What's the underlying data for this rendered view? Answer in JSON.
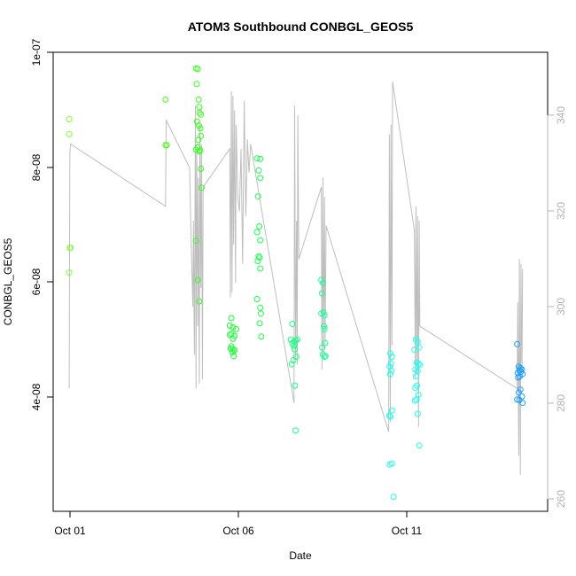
{
  "chart_data": {
    "type": "scatter",
    "title": "ATOM3 Southbound CONBGL_GEOS5",
    "xlabel": "Date",
    "ylabel": "CONBGL_GEOS5",
    "x_ticks": [
      "Oct 01",
      "Oct 06",
      "Oct 11"
    ],
    "x_tick_days": [
      1,
      6,
      11
    ],
    "xlim": [
      0.5,
      15.9
    ],
    "y_ticks": [
      "4e-08",
      "6e-08",
      "8e-08",
      "1e-07"
    ],
    "y_tick_values": [
      4e-08,
      6e-08,
      8e-08,
      1e-07
    ],
    "ylim": [
      2.04e-08,
      1e-07
    ],
    "y2_ticks": [
      "260",
      "280",
      "300",
      "320",
      "340"
    ],
    "y2_tick_values": [
      260,
      280,
      300,
      320,
      340
    ],
    "y2lim": [
      258.5,
      354
    ],
    "grid": false,
    "colors": {
      "secondary_line": "#bebebe",
      "secondary_axis": "#b3b3b3",
      "frame": "#000000"
    },
    "series": [
      {
        "kind": "points",
        "points": [
          {
            "x": 1.0,
            "y": 8.84e-08,
            "color": "#7CFF33"
          },
          {
            "x": 1.0,
            "y": 8.58e-08,
            "color": "#7CFF33"
          },
          {
            "x": 1.02,
            "y": 6.61e-08,
            "color": "#7CFF33"
          },
          {
            "x": 1.04,
            "y": 6.61e-08,
            "color": "#7CFF33"
          },
          {
            "x": 1.0,
            "y": 6.18e-08,
            "color": "#7CFF33"
          },
          {
            "x": 4.0,
            "y": 9.18e-08,
            "color": "#4CFF1A"
          },
          {
            "x": 4.0,
            "y": 8.39e-08,
            "color": "#4CFF1A"
          },
          {
            "x": 4.04,
            "y": 8.39e-08,
            "color": "#4CFF1A"
          },
          {
            "x": 4.95,
            "y": 9.72e-08,
            "color": "#33FF1A"
          },
          {
            "x": 5.0,
            "y": 9.71e-08,
            "color": "#33FF1A"
          },
          {
            "x": 4.97,
            "y": 9.45e-08,
            "color": "#33FF1A"
          },
          {
            "x": 5.03,
            "y": 9.18e-08,
            "color": "#33FF1A"
          },
          {
            "x": 5.05,
            "y": 9.05e-08,
            "color": "#33FF1A"
          },
          {
            "x": 5.06,
            "y": 8.95e-08,
            "color": "#33FF1A"
          },
          {
            "x": 5.1,
            "y": 8.92e-08,
            "color": "#33FF1A"
          },
          {
            "x": 4.98,
            "y": 8.8e-08,
            "color": "#33FF1A"
          },
          {
            "x": 5.04,
            "y": 8.73e-08,
            "color": "#33FF1A"
          },
          {
            "x": 5.08,
            "y": 8.68e-08,
            "color": "#33FF1A"
          },
          {
            "x": 5.1,
            "y": 8.55e-08,
            "color": "#33FF1A"
          },
          {
            "x": 5.02,
            "y": 8.48e-08,
            "color": "#33FF1A"
          },
          {
            "x": 5.0,
            "y": 8.35e-08,
            "color": "#33FF1A"
          },
          {
            "x": 4.95,
            "y": 8.31e-08,
            "color": "#33FF1A"
          },
          {
            "x": 5.05,
            "y": 8.28e-08,
            "color": "#33FF1A"
          },
          {
            "x": 5.08,
            "y": 8.3e-08,
            "color": "#33FF1A"
          },
          {
            "x": 5.1,
            "y": 7.98e-08,
            "color": "#33FF1A"
          },
          {
            "x": 5.12,
            "y": 7.65e-08,
            "color": "#33FF1A"
          },
          {
            "x": 4.95,
            "y": 6.73e-08,
            "color": "#33FF1A"
          },
          {
            "x": 5.0,
            "y": 6.05e-08,
            "color": "#33FF1A"
          },
          {
            "x": 5.05,
            "y": 5.68e-08,
            "color": "#33FF1A"
          },
          {
            "x": 6.05,
            "y": 5.39e-08,
            "color": "#1AFF33"
          },
          {
            "x": 6.0,
            "y": 5.26e-08,
            "color": "#1AFF33"
          },
          {
            "x": 6.1,
            "y": 5.23e-08,
            "color": "#1AFF33"
          },
          {
            "x": 6.2,
            "y": 5.2e-08,
            "color": "#1AFF33"
          },
          {
            "x": 6.05,
            "y": 5.12e-08,
            "color": "#1AFF33"
          },
          {
            "x": 6.15,
            "y": 5.08e-08,
            "color": "#1AFF33"
          },
          {
            "x": 6.1,
            "y": 5.03e-08,
            "color": "#1AFF33"
          },
          {
            "x": 6.0,
            "y": 5.1e-08,
            "color": "#1AFF33"
          },
          {
            "x": 6.05,
            "y": 4.9e-08,
            "color": "#1AFF33"
          },
          {
            "x": 6.1,
            "y": 4.85e-08,
            "color": "#1AFF33"
          },
          {
            "x": 6.15,
            "y": 4.83e-08,
            "color": "#1AFF33"
          },
          {
            "x": 6.08,
            "y": 4.8e-08,
            "color": "#1AFF33"
          },
          {
            "x": 6.12,
            "y": 4.73e-08,
            "color": "#1AFF33"
          },
          {
            "x": 6.03,
            "y": 4.86e-08,
            "color": "#1AFF33"
          },
          {
            "x": 6.85,
            "y": 8.16e-08,
            "color": "#1AFF4D"
          },
          {
            "x": 6.95,
            "y": 8.15e-08,
            "color": "#1AFF4D"
          },
          {
            "x": 6.9,
            "y": 7.95e-08,
            "color": "#1AFF4D"
          },
          {
            "x": 6.95,
            "y": 7.82e-08,
            "color": "#1AFF4D"
          },
          {
            "x": 6.88,
            "y": 7.5e-08,
            "color": "#1AFF4D"
          },
          {
            "x": 6.92,
            "y": 6.98e-08,
            "color": "#1AFF4D"
          },
          {
            "x": 6.85,
            "y": 6.88e-08,
            "color": "#1AFF4D"
          },
          {
            "x": 6.95,
            "y": 6.74e-08,
            "color": "#1AFF4D"
          },
          {
            "x": 6.9,
            "y": 6.46e-08,
            "color": "#1AFF4D"
          },
          {
            "x": 6.93,
            "y": 6.44e-08,
            "color": "#1AFF4D"
          },
          {
            "x": 6.87,
            "y": 6.38e-08,
            "color": "#1AFF4D"
          },
          {
            "x": 6.95,
            "y": 6.25e-08,
            "color": "#1AFF4D"
          },
          {
            "x": 6.85,
            "y": 5.72e-08,
            "color": "#1AFF4D"
          },
          {
            "x": 6.95,
            "y": 5.57e-08,
            "color": "#1AFF4D"
          },
          {
            "x": 6.97,
            "y": 5.47e-08,
            "color": "#1AFF4D"
          },
          {
            "x": 6.93,
            "y": 5.3e-08,
            "color": "#1AFF4D"
          },
          {
            "x": 6.98,
            "y": 5.07e-08,
            "color": "#1AFF4D"
          },
          {
            "x": 7.95,
            "y": 5.29e-08,
            "color": "#1AFF80"
          },
          {
            "x": 7.9,
            "y": 5.02e-08,
            "color": "#1AFF80"
          },
          {
            "x": 8.0,
            "y": 4.98e-08,
            "color": "#1AFF80"
          },
          {
            "x": 8.05,
            "y": 5e-08,
            "color": "#1AFF80"
          },
          {
            "x": 8.1,
            "y": 5.02e-08,
            "color": "#1AFF80"
          },
          {
            "x": 7.95,
            "y": 4.95e-08,
            "color": "#1AFF80"
          },
          {
            "x": 8.0,
            "y": 4.91e-08,
            "color": "#1AFF80"
          },
          {
            "x": 8.02,
            "y": 4.85e-08,
            "color": "#1AFF80"
          },
          {
            "x": 8.07,
            "y": 4.72e-08,
            "color": "#1AFF80"
          },
          {
            "x": 7.98,
            "y": 4.66e-08,
            "color": "#1AFF80"
          },
          {
            "x": 7.93,
            "y": 4.59e-08,
            "color": "#1AFF80"
          },
          {
            "x": 8.03,
            "y": 4.22e-08,
            "color": "#1AFF80"
          },
          {
            "x": 8.05,
            "y": 3.44e-08,
            "color": "#1AFF80"
          },
          {
            "x": 8.85,
            "y": 6.05e-08,
            "color": "#1AFF99"
          },
          {
            "x": 8.9,
            "y": 6e-08,
            "color": "#1AFF99"
          },
          {
            "x": 8.87,
            "y": 5.82e-08,
            "color": "#1AFF99"
          },
          {
            "x": 8.92,
            "y": 5.49e-08,
            "color": "#1AFF99"
          },
          {
            "x": 8.85,
            "y": 5.47e-08,
            "color": "#1AFF99"
          },
          {
            "x": 8.95,
            "y": 5.44e-08,
            "color": "#1AFF99"
          },
          {
            "x": 8.93,
            "y": 5.25e-08,
            "color": "#1AFF99"
          },
          {
            "x": 8.95,
            "y": 5.2e-08,
            "color": "#1AFF99"
          },
          {
            "x": 8.97,
            "y": 4.96e-08,
            "color": "#1AFF99"
          },
          {
            "x": 8.88,
            "y": 4.88e-08,
            "color": "#1AFF99"
          },
          {
            "x": 8.9,
            "y": 4.76e-08,
            "color": "#1AFF99"
          },
          {
            "x": 8.95,
            "y": 4.72e-08,
            "color": "#1AFF99"
          },
          {
            "x": 8.98,
            "y": 4.73e-08,
            "color": "#1AFF99"
          },
          {
            "x": 11.0,
            "y": 4.78e-08,
            "color": "#1AFFE6"
          },
          {
            "x": 11.05,
            "y": 4.72e-08,
            "color": "#1AFFE6"
          },
          {
            "x": 11.02,
            "y": 4.6e-08,
            "color": "#1AFFE6"
          },
          {
            "x": 10.98,
            "y": 4.55e-08,
            "color": "#1AFFE6"
          },
          {
            "x": 11.03,
            "y": 4.48e-08,
            "color": "#1AFFE6"
          },
          {
            "x": 11.0,
            "y": 4.42e-08,
            "color": "#1AFFE6"
          },
          {
            "x": 11.05,
            "y": 3.79e-08,
            "color": "#1AFFE6"
          },
          {
            "x": 10.97,
            "y": 3.7e-08,
            "color": "#1AFFE6"
          },
          {
            "x": 11.0,
            "y": 3.68e-08,
            "color": "#1AFFE6"
          },
          {
            "x": 10.98,
            "y": 2.85e-08,
            "color": "#1AFFE6"
          },
          {
            "x": 11.05,
            "y": 2.87e-08,
            "color": "#1AFFE6"
          },
          {
            "x": 11.1,
            "y": 2.29e-08,
            "color": "#1AFFE6"
          },
          {
            "x": 11.8,
            "y": 5.02e-08,
            "color": "#1AFFF2"
          },
          {
            "x": 11.85,
            "y": 4.98e-08,
            "color": "#1AFFF2"
          },
          {
            "x": 11.9,
            "y": 4.88e-08,
            "color": "#1AFFF2"
          },
          {
            "x": 11.75,
            "y": 4.84e-08,
            "color": "#1AFFF2"
          },
          {
            "x": 11.82,
            "y": 4.62e-08,
            "color": "#1AFFF2"
          },
          {
            "x": 11.88,
            "y": 4.6e-08,
            "color": "#1AFFF2"
          },
          {
            "x": 11.92,
            "y": 4.58e-08,
            "color": "#1AFFF2"
          },
          {
            "x": 11.78,
            "y": 4.5e-08,
            "color": "#1AFFF2"
          },
          {
            "x": 11.85,
            "y": 4.47e-08,
            "color": "#1AFFF2"
          },
          {
            "x": 11.8,
            "y": 4.38e-08,
            "color": "#1AFFF2"
          },
          {
            "x": 11.83,
            "y": 4.22e-08,
            "color": "#1AFFF2"
          },
          {
            "x": 11.78,
            "y": 4.18e-08,
            "color": "#1AFFF2"
          },
          {
            "x": 11.88,
            "y": 4.06e-08,
            "color": "#1AFFF2"
          },
          {
            "x": 11.77,
            "y": 3.96e-08,
            "color": "#1AFFF2"
          },
          {
            "x": 11.82,
            "y": 3.98e-08,
            "color": "#1AFFF2"
          },
          {
            "x": 11.85,
            "y": 3.73e-08,
            "color": "#1AFFF2"
          },
          {
            "x": 11.9,
            "y": 3.18e-08,
            "color": "#1AFFF2"
          },
          {
            "x": 14.95,
            "y": 4.94e-08,
            "color": "#1A9FFF"
          },
          {
            "x": 15.0,
            "y": 4.55e-08,
            "color": "#1A9FFF"
          },
          {
            "x": 15.05,
            "y": 4.52e-08,
            "color": "#1A9FFF"
          },
          {
            "x": 15.1,
            "y": 4.5e-08,
            "color": "#1A9FFF"
          },
          {
            "x": 15.02,
            "y": 4.48e-08,
            "color": "#1A9FFF"
          },
          {
            "x": 15.07,
            "y": 4.46e-08,
            "color": "#1A9FFF"
          },
          {
            "x": 14.97,
            "y": 4.44e-08,
            "color": "#1A9FFF"
          },
          {
            "x": 15.12,
            "y": 4.42e-08,
            "color": "#1A9FFF"
          },
          {
            "x": 15.03,
            "y": 4.38e-08,
            "color": "#1A9FFF"
          },
          {
            "x": 14.98,
            "y": 4.36e-08,
            "color": "#1A9FFF"
          },
          {
            "x": 15.05,
            "y": 4.15e-08,
            "color": "#1A9FFF"
          },
          {
            "x": 15.0,
            "y": 4.1e-08,
            "color": "#1A9FFF"
          },
          {
            "x": 15.1,
            "y": 4.03e-08,
            "color": "#1A9FFF"
          },
          {
            "x": 14.95,
            "y": 3.98e-08,
            "color": "#1A9FFF"
          },
          {
            "x": 15.02,
            "y": 3.97e-08,
            "color": "#1A9FFF"
          },
          {
            "x": 15.12,
            "y": 3.92e-08,
            "color": "#1A9FFF"
          }
        ]
      },
      {
        "kind": "line",
        "axis": "right",
        "color": "#bebebe",
        "points": [
          [
            1.0,
            283
          ],
          [
            1.02,
            332
          ],
          [
            1.04,
            334
          ],
          [
            4.0,
            321
          ],
          [
            4.02,
            339
          ],
          [
            4.75,
            329
          ],
          [
            4.8,
            313
          ],
          [
            4.85,
            300
          ],
          [
            4.87,
            318
          ],
          [
            4.9,
            290
          ],
          [
            4.93,
            342
          ],
          [
            4.95,
            283
          ],
          [
            4.97,
            334
          ],
          [
            5.0,
            296
          ],
          [
            5.02,
            327
          ],
          [
            5.05,
            284
          ],
          [
            5.07,
            338
          ],
          [
            5.1,
            304
          ],
          [
            5.12,
            334
          ],
          [
            5.15,
            285
          ],
          [
            5.17,
            325
          ],
          [
            6.0,
            333
          ],
          [
            6.02,
            302
          ],
          [
            6.05,
            345
          ],
          [
            6.07,
            303
          ],
          [
            6.1,
            344
          ],
          [
            6.12,
            313
          ],
          [
            6.15,
            341
          ],
          [
            6.18,
            305
          ],
          [
            6.2,
            338
          ],
          [
            6.25,
            323
          ],
          [
            6.3,
            320
          ],
          [
            6.35,
            333
          ],
          [
            6.4,
            309
          ],
          [
            6.45,
            343
          ],
          [
            6.5,
            319
          ],
          [
            6.55,
            335
          ],
          [
            6.6,
            328
          ],
          [
            6.65,
            334
          ],
          [
            8.0,
            280
          ],
          [
            8.02,
            342
          ],
          [
            8.05,
            289
          ],
          [
            8.08,
            318
          ],
          [
            8.1,
            288
          ],
          [
            8.12,
            340
          ],
          [
            8.15,
            310
          ],
          [
            8.85,
            325
          ],
          [
            8.87,
            287
          ],
          [
            8.9,
            327
          ],
          [
            8.92,
            290
          ],
          [
            8.95,
            323
          ],
          [
            8.97,
            292
          ],
          [
            9.0,
            317
          ],
          [
            10.95,
            274
          ],
          [
            10.97,
            336
          ],
          [
            11.0,
            276
          ],
          [
            11.02,
            338
          ],
          [
            11.05,
            292
          ],
          [
            11.07,
            347
          ],
          [
            11.75,
            316
          ],
          [
            11.78,
            285
          ],
          [
            11.8,
            321
          ],
          [
            11.83,
            286
          ],
          [
            11.85,
            319
          ],
          [
            11.88,
            275
          ],
          [
            11.9,
            318
          ],
          [
            11.92,
            296
          ],
          [
            14.95,
            283
          ],
          [
            14.97,
            301
          ],
          [
            15.0,
            269
          ],
          [
            15.02,
            310
          ],
          [
            15.05,
            265
          ],
          [
            15.07,
            309
          ],
          [
            15.1,
            285
          ],
          [
            15.12,
            308
          ]
        ]
      }
    ]
  }
}
